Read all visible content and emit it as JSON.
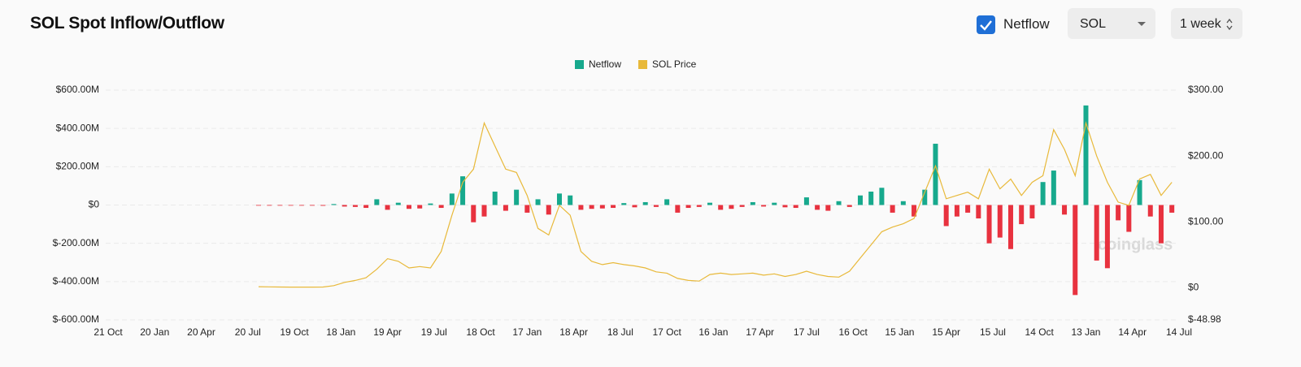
{
  "header": {
    "title": "SOL Spot Inflow/Outflow",
    "checkbox_label": "Netflow",
    "coin_select": "SOL",
    "interval_select": "1 week"
  },
  "chart_data": {
    "type": "bar",
    "watermark": "coinglass",
    "xlim": [
      0,
      299
    ],
    "xticks": [
      {
        "value": 0,
        "label": "21 Oct"
      },
      {
        "value": 13,
        "label": "20 Jan"
      },
      {
        "value": 26,
        "label": "20 Apr"
      },
      {
        "value": 39,
        "label": "20 Jul"
      },
      {
        "value": 52,
        "label": "19 Oct"
      },
      {
        "value": 65,
        "label": "18 Jan"
      },
      {
        "value": 78,
        "label": "19 Apr"
      },
      {
        "value": 91,
        "label": "19 Jul"
      },
      {
        "value": 104,
        "label": "18 Oct"
      },
      {
        "value": 117,
        "label": "17 Jan"
      },
      {
        "value": 130,
        "label": "18 Apr"
      },
      {
        "value": 143,
        "label": "18 Jul"
      },
      {
        "value": 156,
        "label": "17 Oct"
      },
      {
        "value": 169,
        "label": "16 Jan"
      },
      {
        "value": 182,
        "label": "17 Apr"
      },
      {
        "value": 195,
        "label": "17 Jul"
      },
      {
        "value": 208,
        "label": "16 Oct"
      },
      {
        "value": 221,
        "label": "15 Jan"
      },
      {
        "value": 234,
        "label": "15 Apr"
      },
      {
        "value": 247,
        "label": "15 Jul"
      },
      {
        "value": 260,
        "label": "14 Oct"
      },
      {
        "value": 273,
        "label": "13 Jan"
      },
      {
        "value": 286,
        "label": "14 Apr"
      },
      {
        "value": 299,
        "label": "14 Jul"
      }
    ],
    "ylim": [
      -600,
      600
    ],
    "yticks": [
      {
        "value": 600,
        "label": "$600.00M"
      },
      {
        "value": 400,
        "label": "$400.00M"
      },
      {
        "value": 200,
        "label": "$200.00M"
      },
      {
        "value": 0,
        "label": "$0"
      },
      {
        "value": -200,
        "label": "$-200.00M"
      },
      {
        "value": -400,
        "label": "$-400.00M"
      },
      {
        "value": -600,
        "label": "$-600.00M"
      }
    ],
    "y2lim": [
      -48.98,
      300
    ],
    "y2ticks": [
      {
        "value": 300,
        "label": "$300.00"
      },
      {
        "value": 200,
        "label": "$200.00"
      },
      {
        "value": 100,
        "label": "$100.00"
      },
      {
        "value": 0,
        "label": "$0"
      },
      {
        "value": -48.98,
        "label": "$-48.98"
      }
    ],
    "grid": true,
    "legend": "top",
    "x": [
      42,
      45,
      48,
      51,
      54,
      57,
      60,
      63,
      66,
      69,
      72,
      75,
      78,
      81,
      84,
      87,
      90,
      93,
      96,
      99,
      102,
      105,
      108,
      111,
      114,
      117,
      120,
      123,
      126,
      129,
      132,
      135,
      138,
      141,
      144,
      147,
      150,
      153,
      156,
      159,
      162,
      165,
      168,
      171,
      174,
      177,
      180,
      183,
      186,
      189,
      192,
      195,
      198,
      201,
      204,
      207,
      210,
      213,
      216,
      219,
      222,
      225,
      228,
      231,
      234,
      237,
      240,
      243,
      246,
      249,
      252,
      255,
      258,
      261,
      264,
      267,
      270,
      273,
      276,
      279,
      282,
      285,
      288,
      291,
      294,
      297
    ],
    "series": [
      {
        "name": "Netflow",
        "color": "#17a98d",
        "negative_color": "#e8323f",
        "values": [
          -2,
          -3,
          -3,
          -2,
          -3,
          -2,
          -4,
          5,
          -8,
          -10,
          -15,
          30,
          -25,
          12,
          -20,
          -18,
          8,
          -15,
          60,
          150,
          -90,
          -60,
          70,
          -30,
          80,
          -40,
          30,
          -50,
          60,
          50,
          -25,
          -20,
          -18,
          -15,
          10,
          -12,
          15,
          -10,
          30,
          -40,
          -15,
          -10,
          12,
          -25,
          -20,
          -10,
          15,
          -8,
          12,
          -12,
          -15,
          40,
          -25,
          -30,
          20,
          -10,
          50,
          70,
          90,
          -40,
          20,
          -60,
          80,
          320,
          -110,
          -60,
          -40,
          -70,
          -200,
          -170,
          -230,
          -100,
          -70,
          120,
          180,
          -50,
          -470,
          520,
          -290,
          -330,
          -80,
          -140,
          130,
          -60,
          -200,
          -40
        ]
      },
      {
        "name": "SOL Price",
        "type": "line",
        "axis": "y2",
        "color": "#e8b93a",
        "values": [
          1.5,
          1.2,
          1,
          0.8,
          0.8,
          0.8,
          1,
          3,
          8,
          11,
          15,
          28,
          44,
          40,
          30,
          32,
          30,
          55,
          110,
          160,
          180,
          250,
          215,
          180,
          175,
          140,
          90,
          80,
          125,
          110,
          55,
          40,
          35,
          38,
          35,
          33,
          30,
          24,
          22,
          14,
          11,
          10,
          20,
          22,
          20,
          21,
          22,
          19,
          21,
          17,
          20,
          25,
          20,
          17,
          16,
          25,
          45,
          65,
          85,
          92,
          97,
          105,
          145,
          185,
          135,
          140,
          145,
          135,
          180,
          150,
          165,
          140,
          160,
          170,
          240,
          210,
          170,
          250,
          200,
          160,
          130,
          125,
          165,
          172,
          140,
          160
        ]
      }
    ]
  }
}
